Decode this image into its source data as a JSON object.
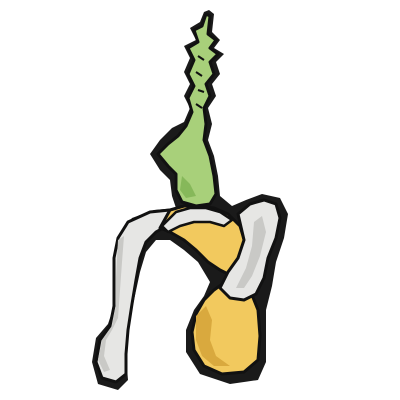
{
  "image": {
    "subject": "cartoon-organic-root-sculpture",
    "colors": {
      "background": "#ffffff",
      "outline": "#111111",
      "green_fill": "#a8d07a",
      "green_shade": "#86b85a",
      "yellow_fill": "#f2c95e",
      "yellow_shade": "#d9a93e",
      "gray_fill": "#e6e6e4",
      "gray_shade": "#c9c9c6",
      "shadow": "#1a1a1a"
    }
  }
}
